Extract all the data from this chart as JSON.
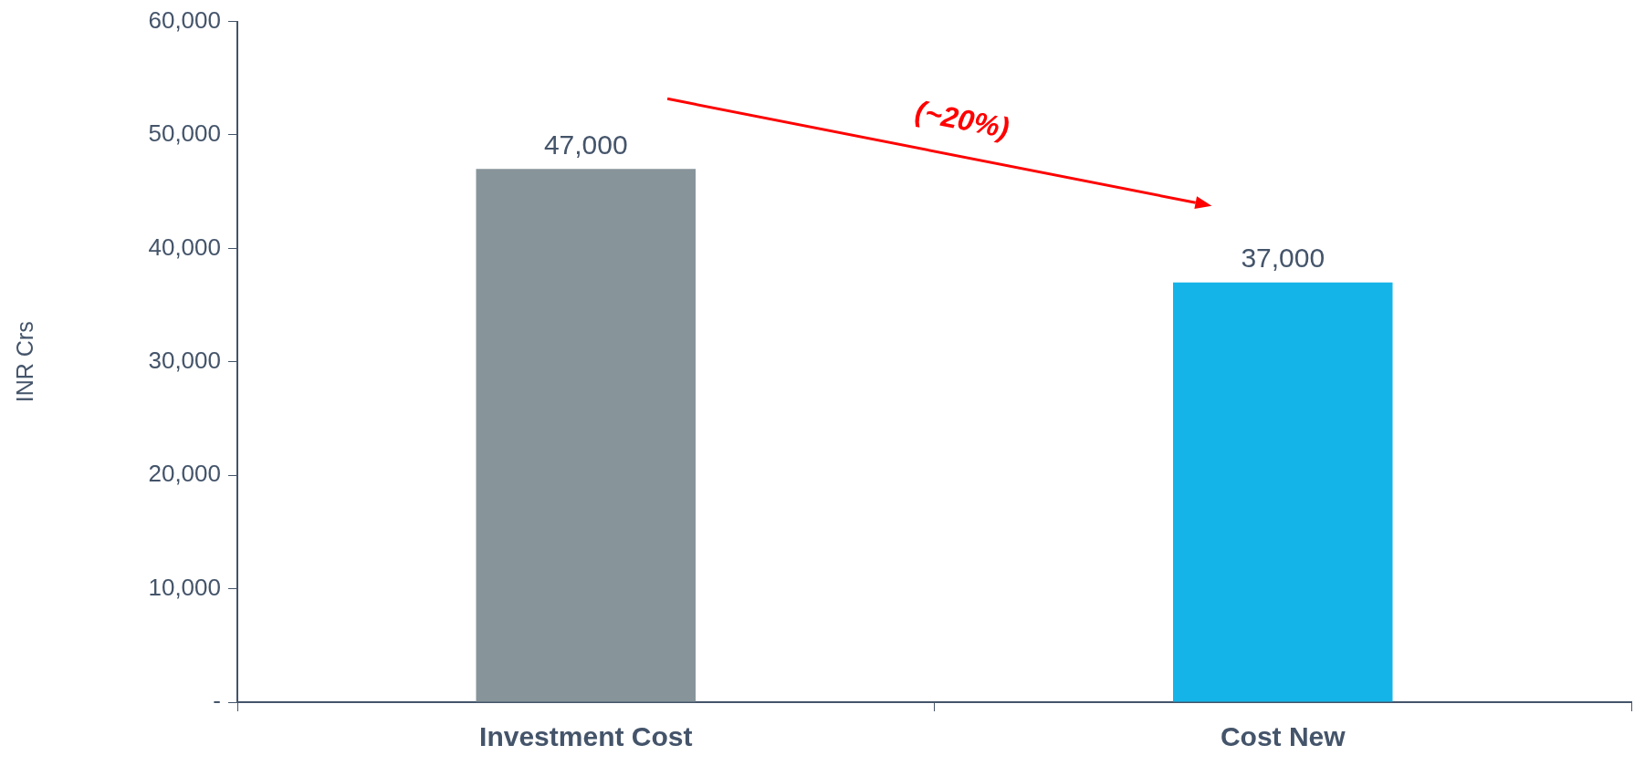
{
  "chart_data": {
    "type": "bar",
    "ylabel": "INR Crs",
    "categories": [
      "Investment Cost",
      "Cost New"
    ],
    "values": [
      47000,
      37000
    ],
    "colors": [
      "#87959b",
      "#15b4e8"
    ],
    "value_labels": [
      "47,000",
      "37,000"
    ],
    "ylim": [
      0,
      60000
    ],
    "yticks": [
      {
        "value": 0,
        "label": "-"
      },
      {
        "value": 10000,
        "label": "10,000"
      },
      {
        "value": 20000,
        "label": "20,000"
      },
      {
        "value": 30000,
        "label": "30,000"
      },
      {
        "value": 40000,
        "label": "40,000"
      },
      {
        "value": 50000,
        "label": "50,000"
      },
      {
        "value": 60000,
        "label": "60,000"
      }
    ],
    "annotations": [
      "(~20%)"
    ],
    "grid": false,
    "legend": false
  }
}
